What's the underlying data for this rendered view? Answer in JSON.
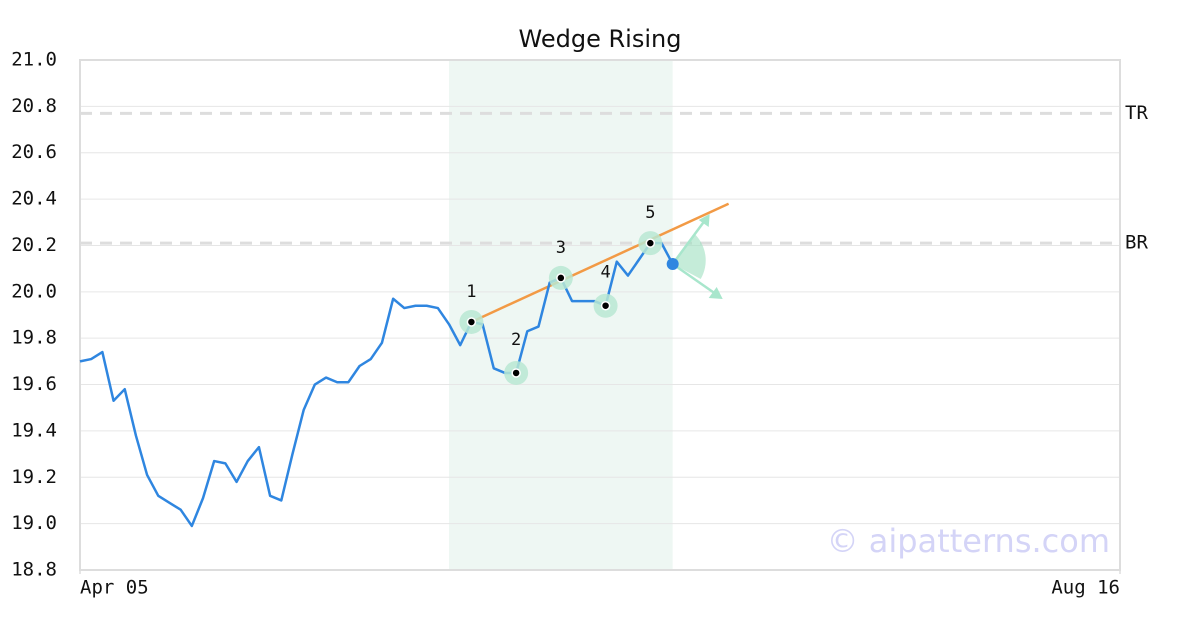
{
  "chart_data": {
    "type": "line",
    "title": "Wedge Rising",
    "xlim": [
      0,
      93
    ],
    "xticks": [
      {
        "value": 0,
        "label": "Apr 05"
      },
      {
        "value": 93,
        "label": "Aug 16"
      }
    ],
    "ylim": [
      18.8,
      21.0
    ],
    "yticks": [
      18.8,
      {
        "value": 19.0,
        "label": "19.0"
      },
      19.2,
      19.4,
      19.6,
      19.8,
      {
        "value": 20.0,
        "label": "20.0"
      },
      20.2,
      20.4,
      20.6,
      20.8,
      {
        "value": 21.0,
        "label": "21.0"
      }
    ],
    "grid": true,
    "series": [
      {
        "color": "#2f86e0",
        "x": [
          0,
          1,
          2,
          3,
          4,
          5,
          6,
          7,
          8,
          9,
          10,
          11,
          12,
          13,
          14,
          15,
          16,
          17,
          18,
          19,
          20,
          21,
          22,
          23,
          24,
          25,
          26,
          27,
          28,
          29,
          30,
          31,
          32,
          33,
          34,
          35,
          36,
          37,
          38,
          39,
          40,
          41,
          42,
          43,
          44,
          45,
          46,
          47,
          48,
          49,
          50,
          51,
          52,
          53
        ],
        "values": [
          19.7,
          19.71,
          19.74,
          19.53,
          19.58,
          19.38,
          19.21,
          19.12,
          19.09,
          19.06,
          18.99,
          19.11,
          19.27,
          19.26,
          19.18,
          19.27,
          19.33,
          19.12,
          19.1,
          19.3,
          19.49,
          19.6,
          19.63,
          19.61,
          19.61,
          19.68,
          19.71,
          19.78,
          19.97,
          19.93,
          19.94,
          19.94,
          19.93,
          19.86,
          19.77,
          19.87,
          19.86,
          19.67,
          19.65,
          19.65,
          19.83,
          19.85,
          20.04,
          20.06,
          19.96,
          19.96,
          19.96,
          19.94,
          20.13,
          20.07,
          20.14,
          20.21,
          20.21,
          20.12
        ]
      }
    ],
    "highlight_range": [
      33,
      53
    ],
    "trend_line": {
      "color": "#f29a45",
      "x": [
        35,
        58
      ],
      "values": [
        19.87,
        20.38
      ]
    },
    "pivots": [
      {
        "label": "1",
        "x": 35,
        "value": 19.87
      },
      {
        "label": "2",
        "x": 39,
        "value": 19.65
      },
      {
        "label": "3",
        "x": 43,
        "value": 20.06
      },
      {
        "label": "4",
        "x": 47,
        "value": 19.94
      },
      {
        "label": "5",
        "x": 51,
        "value": 20.21
      }
    ],
    "levels": [
      {
        "label": "TR",
        "value": 20.77
      },
      {
        "label": "BR",
        "value": 20.21
      }
    ],
    "watermark": "© aipatterns.com"
  }
}
